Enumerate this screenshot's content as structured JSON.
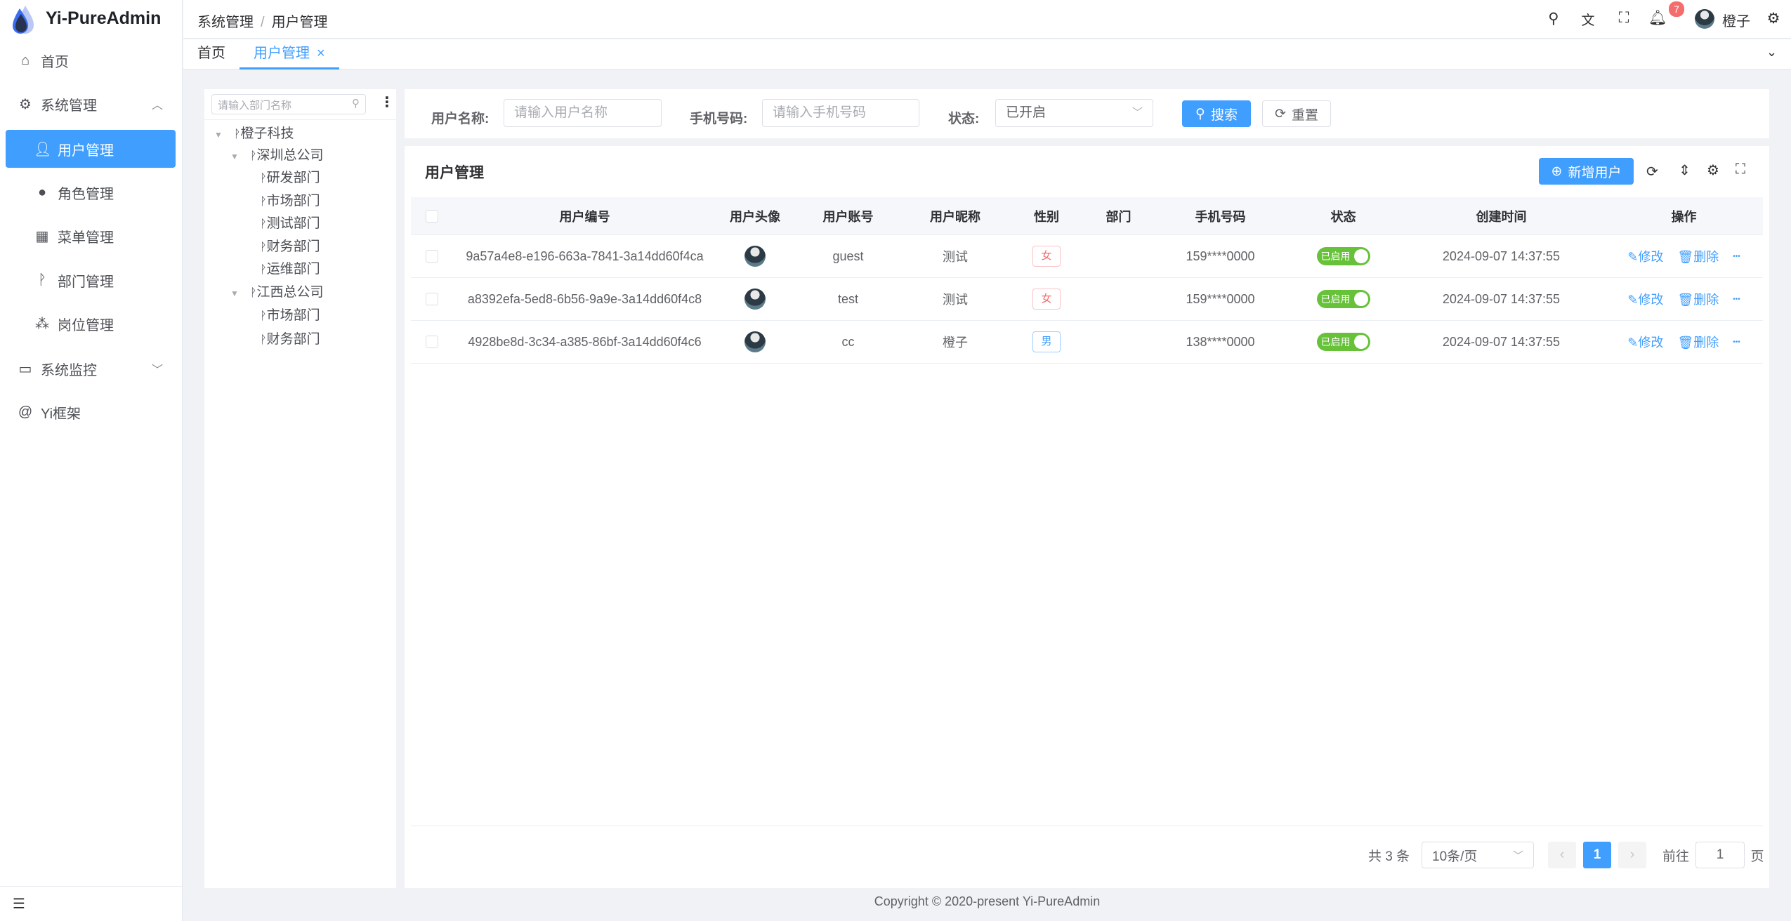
{
  "app": {
    "title": "Yi-PureAdmin",
    "accent": "#409eff"
  },
  "sidebar": {
    "items": [
      {
        "label": "首页",
        "icon": "home-icon"
      },
      {
        "label": "系统管理",
        "icon": "gear-icon",
        "expanded": true
      },
      {
        "label": "用户管理",
        "icon": "user-icon",
        "active": true
      },
      {
        "label": "角色管理",
        "icon": "role-icon"
      },
      {
        "label": "菜单管理",
        "icon": "grid-icon"
      },
      {
        "label": "部门管理",
        "icon": "branch-icon"
      },
      {
        "label": "岗位管理",
        "icon": "org-icon"
      },
      {
        "label": "系统监控",
        "icon": "monitor-icon"
      },
      {
        "label": "Yi框架",
        "icon": "at-icon"
      }
    ]
  },
  "header": {
    "breadcrumb": [
      "系统管理",
      "用户管理"
    ],
    "notification_count": "7",
    "username": "橙子"
  },
  "tabs": [
    {
      "label": "首页"
    },
    {
      "label": "用户管理",
      "active": true
    }
  ],
  "tree": {
    "placeholder": "请输入部门名称",
    "nodes": [
      "橙子科技",
      "深圳总公司",
      "研发部门",
      "市场部门",
      "测试部门",
      "财务部门",
      "运维部门",
      "江西总公司",
      "市场部门",
      "财务部门"
    ]
  },
  "search": {
    "username_label": "用户名称:",
    "username_placeholder": "请输入用户名称",
    "phone_label": "手机号码:",
    "phone_placeholder": "请输入手机号码",
    "status_label": "状态:",
    "status_value": "已开启",
    "search_button": "搜索",
    "reset_button": "重置"
  },
  "table": {
    "title": "用户管理",
    "add_button": "新增用户",
    "columns": [
      "用户编号",
      "用户头像",
      "用户账号",
      "用户昵称",
      "性别",
      "部门",
      "手机号码",
      "状态",
      "创建时间",
      "操作"
    ],
    "rows": [
      {
        "id": "9a57a4e8-e196-663a-7841-3a14dd60f4ca",
        "account": "guest",
        "nickname": "测试",
        "gender": "女",
        "dept": "",
        "phone": "159****0000",
        "status": "已启用",
        "created": "2024-09-07 14:37:55"
      },
      {
        "id": "a8392efa-5ed8-6b56-9a9e-3a14dd60f4c8",
        "account": "test",
        "nickname": "测试",
        "gender": "女",
        "dept": "",
        "phone": "159****0000",
        "status": "已启用",
        "created": "2024-09-07 14:37:55"
      },
      {
        "id": "4928be8d-3c34-a385-86bf-3a14dd60f4c6",
        "account": "cc",
        "nickname": "橙子",
        "gender": "男",
        "dept": "",
        "phone": "138****0000",
        "status": "已启用",
        "created": "2024-09-07 14:37:55"
      }
    ],
    "edit_label": "修改",
    "delete_label": "删除"
  },
  "pagination": {
    "total": "共 3 条",
    "page_size": "10条/页",
    "current": "1",
    "goto_label": "前往",
    "goto_value": "1",
    "page_suffix": "页"
  },
  "footer": {
    "copyright": "Copyright © 2020-present Yi-PureAdmin"
  }
}
